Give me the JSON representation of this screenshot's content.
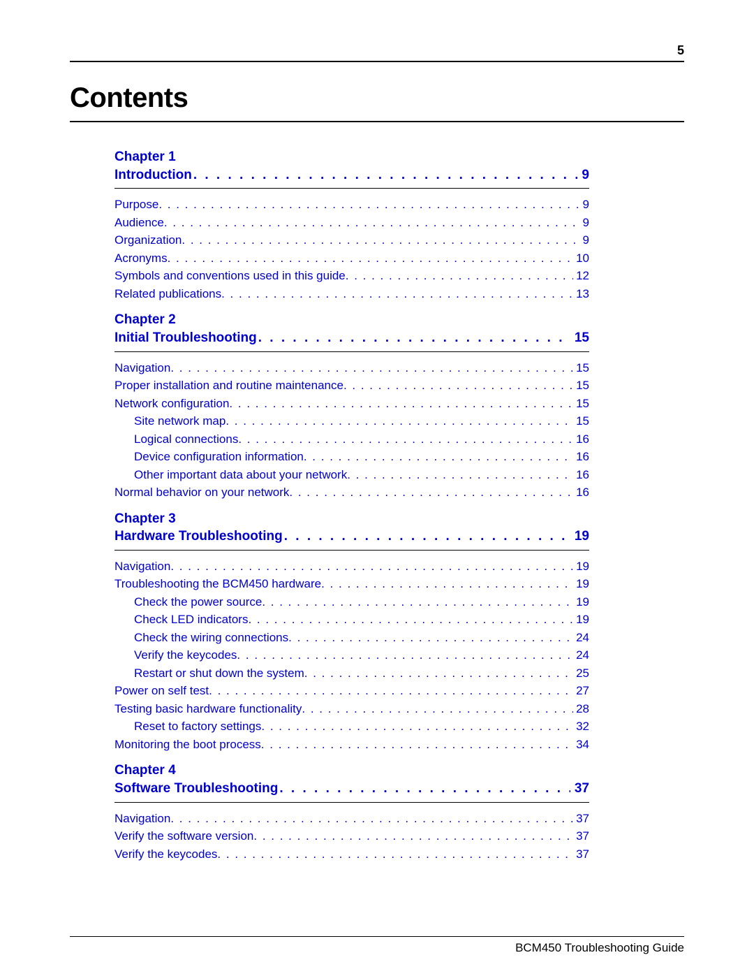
{
  "page_number": "5",
  "title": "Contents",
  "footer": "BCM450 Troubleshooting Guide",
  "colors": {
    "link": "#0000cc",
    "text": "#000000",
    "rule": "#000000"
  },
  "typography": {
    "title_fontsize": 40,
    "chapter_fontsize": 19,
    "entry_fontsize": 17
  },
  "chapters": [
    {
      "label": "Chapter 1",
      "title": "Introduction",
      "page": "9",
      "entries": [
        {
          "label": "Purpose",
          "page": "9",
          "indent": 0
        },
        {
          "label": "Audience",
          "page": "9",
          "indent": 0
        },
        {
          "label": "Organization",
          "page": "9",
          "indent": 0
        },
        {
          "label": "Acronyms",
          "page": "10",
          "indent": 0
        },
        {
          "label": "Symbols and conventions used in this guide",
          "page": "12",
          "indent": 0
        },
        {
          "label": "Related publications",
          "page": "13",
          "indent": 0
        }
      ]
    },
    {
      "label": "Chapter 2",
      "title": "Initial Troubleshooting",
      "page": "15",
      "entries": [
        {
          "label": "Navigation",
          "page": "15",
          "indent": 0
        },
        {
          "label": "Proper installation and routine maintenance",
          "page": "15",
          "indent": 0
        },
        {
          "label": "Network configuration",
          "page": "15",
          "indent": 0
        },
        {
          "label": "Site network map",
          "page": "15",
          "indent": 1
        },
        {
          "label": "Logical connections",
          "page": "16",
          "indent": 1
        },
        {
          "label": "Device configuration information",
          "page": "16",
          "indent": 1
        },
        {
          "label": "Other important data about your network",
          "page": "16",
          "indent": 1
        },
        {
          "label": "Normal behavior on your network",
          "page": "16",
          "indent": 0
        }
      ]
    },
    {
      "label": "Chapter 3",
      "title": "Hardware Troubleshooting",
      "page": "19",
      "entries": [
        {
          "label": "Navigation",
          "page": "19",
          "indent": 0
        },
        {
          "label": "Troubleshooting the BCM450 hardware",
          "page": "19",
          "indent": 0
        },
        {
          "label": "Check the power source",
          "page": "19",
          "indent": 1
        },
        {
          "label": "Check LED indicators",
          "page": "19",
          "indent": 1
        },
        {
          "label": "Check the wiring connections",
          "page": "24",
          "indent": 1
        },
        {
          "label": "Verify the keycodes",
          "page": "24",
          "indent": 1
        },
        {
          "label": "Restart or shut down the system",
          "page": "25",
          "indent": 1
        },
        {
          "label": "Power on self test",
          "page": "27",
          "indent": 0
        },
        {
          "label": "Testing basic hardware functionality",
          "page": "28",
          "indent": 0
        },
        {
          "label": "Reset to factory settings",
          "page": "32",
          "indent": 1
        },
        {
          "label": "Monitoring the boot process",
          "page": "34",
          "indent": 0
        }
      ]
    },
    {
      "label": "Chapter 4",
      "title": "Software Troubleshooting",
      "page": "37",
      "entries": [
        {
          "label": "Navigation",
          "page": "37",
          "indent": 0
        },
        {
          "label": "Verify the software version",
          "page": "37",
          "indent": 0
        },
        {
          "label": "Verify the keycodes",
          "page": "37",
          "indent": 0
        }
      ]
    }
  ]
}
